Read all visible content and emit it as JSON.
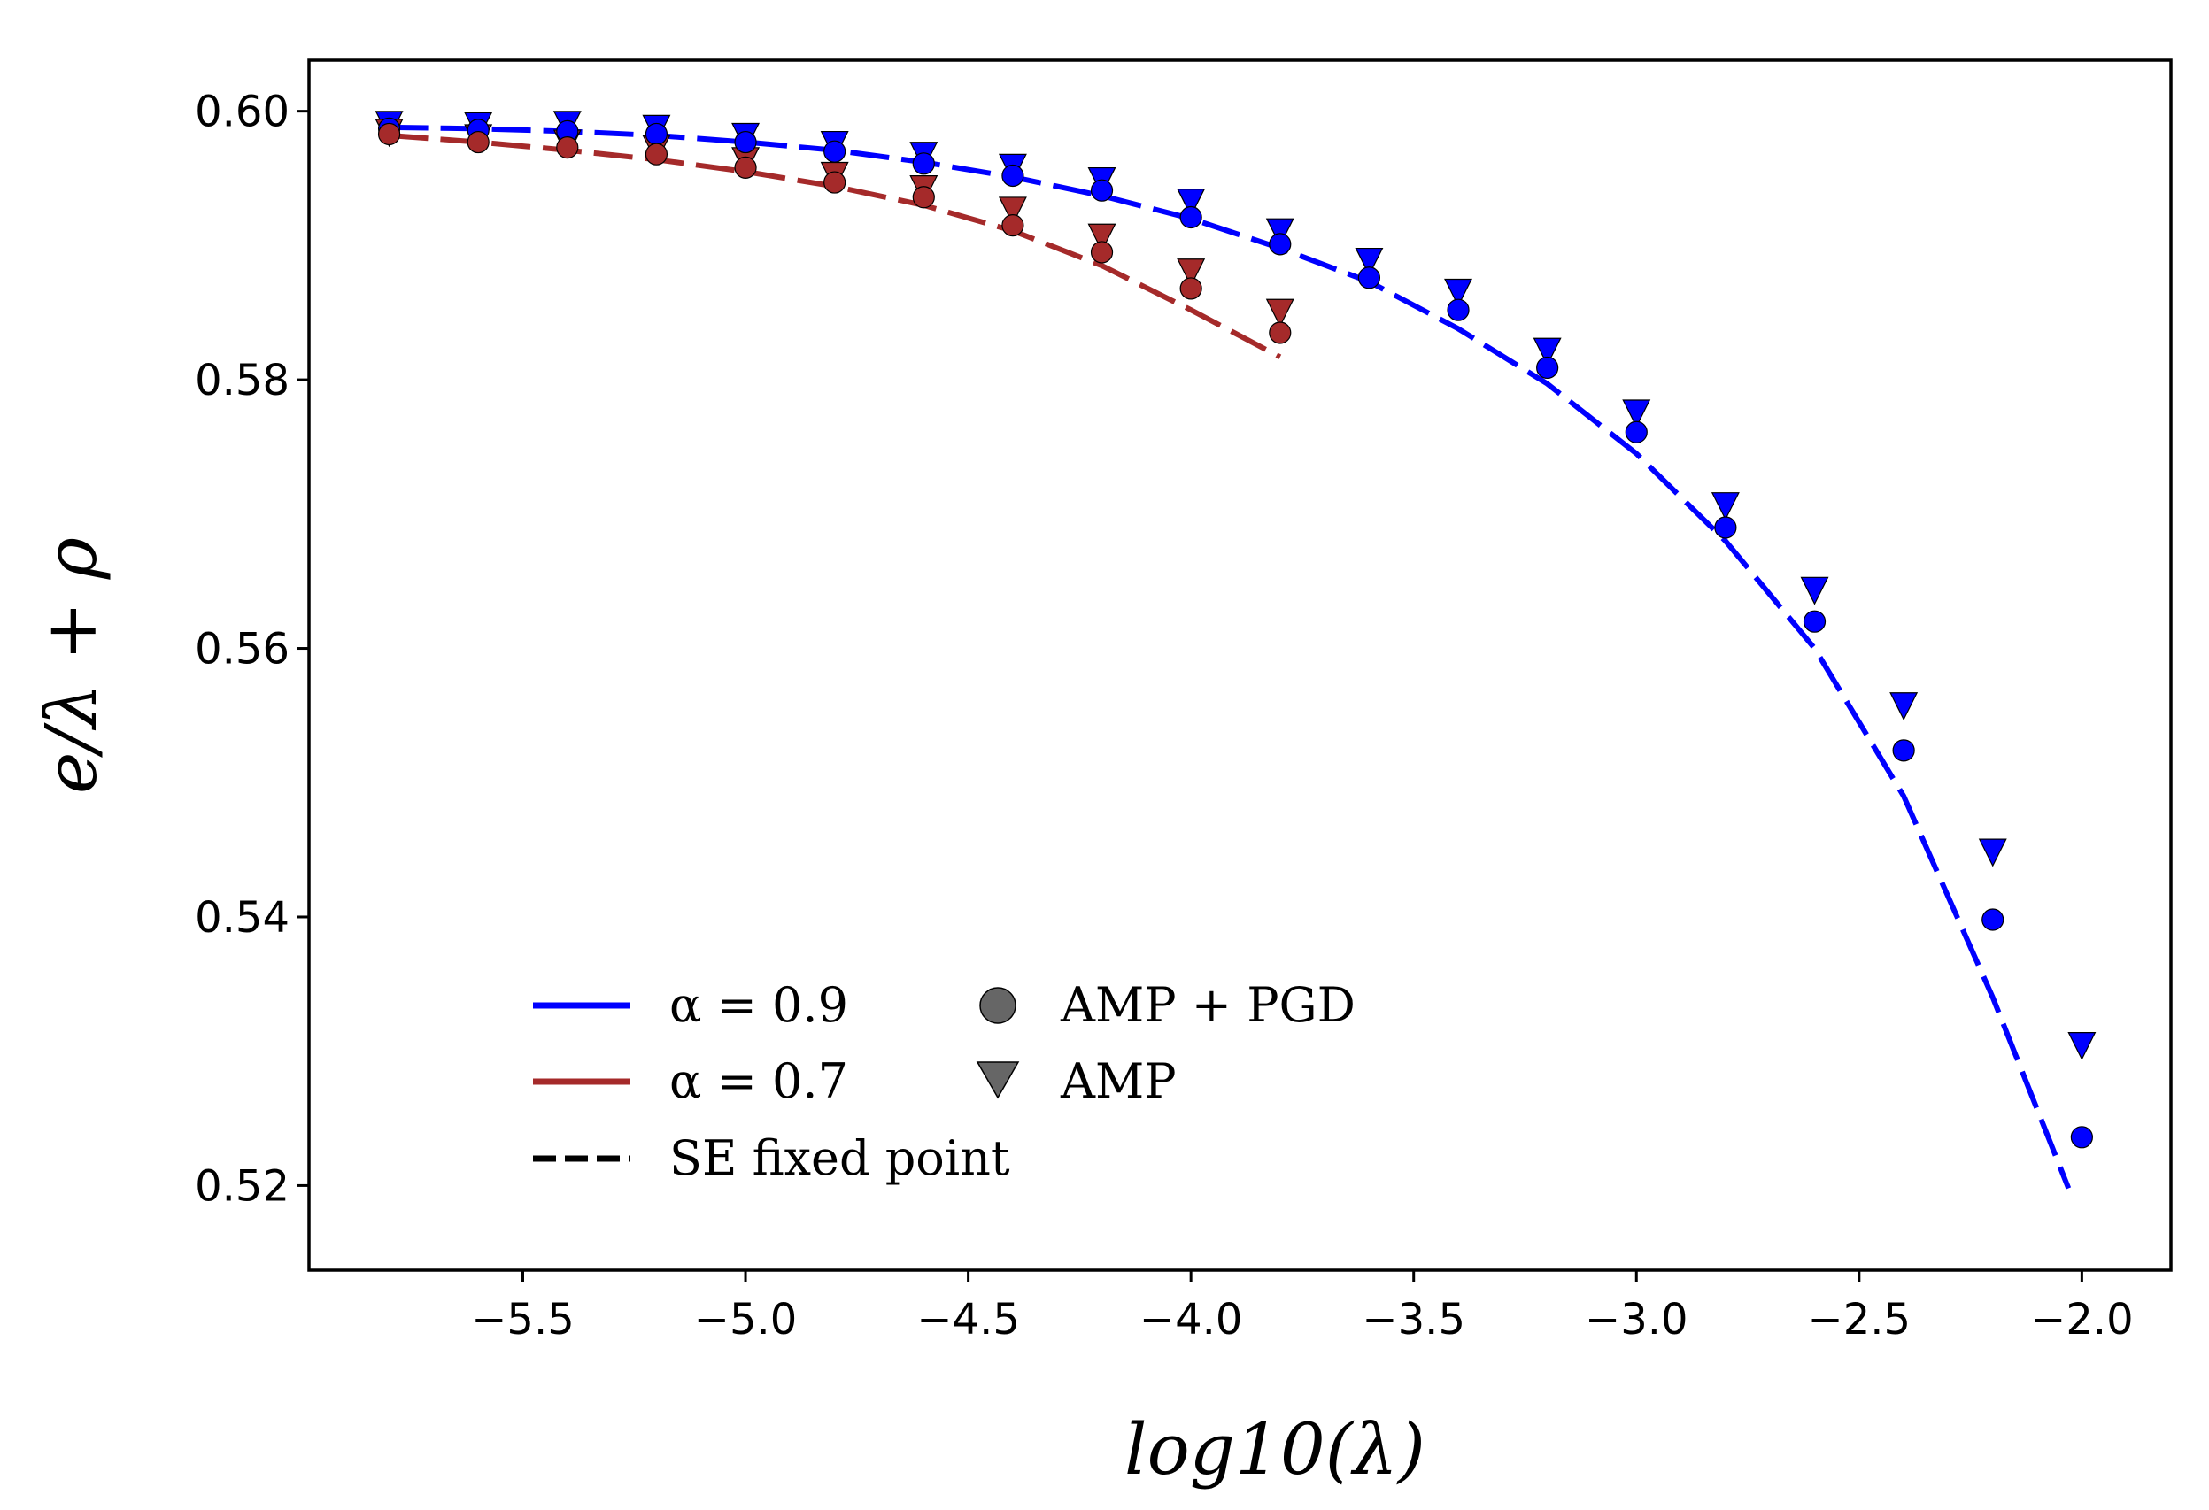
{
  "chart_data": {
    "type": "scatter",
    "title": "",
    "xlabel": "log10(λ)",
    "ylabel": "e/λ + ρ",
    "xlim": [
      -5.98,
      -1.8
    ],
    "ylim": [
      0.5137,
      0.6038
    ],
    "xticks": [
      -5.5,
      -5.0,
      -4.5,
      -4.0,
      -3.5,
      -3.0,
      -2.5,
      -2.0
    ],
    "xtick_labels": [
      "−5.5",
      "−5.0",
      "−4.5",
      "−4.0",
      "−3.5",
      "−3.0",
      "−2.5",
      "−2.0"
    ],
    "yticks": [
      0.52,
      0.54,
      0.56,
      0.58,
      0.6
    ],
    "ytick_labels": [
      "0.52",
      "0.54",
      "0.56",
      "0.58",
      "0.60"
    ],
    "grid": false,
    "legend_position": "lower-left",
    "legend": {
      "alpha_09": "α = 0.9",
      "alpha_07": "α = 0.7",
      "se_fixed_point": "SE fixed point",
      "amp_pgd": "AMP + PGD",
      "amp": "AMP"
    },
    "colors": {
      "alpha_09": "#0000ff",
      "alpha_07": "#a52a2a",
      "legend_marker": "#666666",
      "edge": "#000000"
    },
    "series": [
      {
        "name": "α = 0.9",
        "color_key": "alpha_09",
        "se_x": [
          -5.8,
          -5.6,
          -5.4,
          -5.2,
          -5.0,
          -4.8,
          -4.6,
          -4.4,
          -4.2,
          -4.0,
          -3.8,
          -3.6,
          -3.4,
          -3.2,
          -3.0,
          -2.8,
          -2.6,
          -2.4,
          -2.2,
          -2.03
        ],
        "se_y": [
          0.5988,
          0.5987,
          0.5985,
          0.5982,
          0.5977,
          0.5971,
          0.5962,
          0.5951,
          0.5937,
          0.592,
          0.5898,
          0.5873,
          0.5838,
          0.5797,
          0.5745,
          0.568,
          0.56,
          0.549,
          0.534,
          0.5198
        ],
        "amp_pgd": {
          "x": [
            -5.8,
            -5.6,
            -5.4,
            -5.2,
            -5.0,
            -4.8,
            -4.6,
            -4.4,
            -4.2,
            -4.0,
            -3.8,
            -3.6,
            -3.4,
            -3.2,
            -3.0,
            -2.8,
            -2.6,
            -2.4,
            -2.2,
            -2.0
          ],
          "y": [
            0.5987,
            0.5986,
            0.5985,
            0.5983,
            0.5977,
            0.597,
            0.5961,
            0.5952,
            0.5941,
            0.5921,
            0.5901,
            0.5876,
            0.5852,
            0.5809,
            0.5761,
            0.569,
            0.562,
            0.5524,
            0.5398,
            0.5236
          ]
        },
        "amp": {
          "x": [
            -5.8,
            -5.6,
            -5.4,
            -5.2,
            -5.0,
            -4.8,
            -4.6,
            -4.4,
            -4.2,
            -4.0,
            -3.8,
            -3.6,
            -3.4,
            -3.2,
            -3.0,
            -2.8,
            -2.6,
            -2.4,
            -2.2,
            -2.0
          ],
          "y": [
            0.599,
            0.5989,
            0.599,
            0.5987,
            0.5981,
            0.5975,
            0.5967,
            0.5958,
            0.5948,
            0.5932,
            0.591,
            0.5888,
            0.5865,
            0.5821,
            0.5775,
            0.5706,
            0.5643,
            0.5557,
            0.5448,
            0.5304
          ]
        }
      },
      {
        "name": "α = 0.7",
        "color_key": "alpha_07",
        "se_x": [
          -5.8,
          -5.6,
          -5.4,
          -5.2,
          -5.0,
          -4.8,
          -4.6,
          -4.4,
          -4.2,
          -4.0,
          -3.8
        ],
        "se_y": [
          0.5982,
          0.5977,
          0.5971,
          0.5964,
          0.5955,
          0.5944,
          0.593,
          0.5911,
          0.5885,
          0.5852,
          0.5817
        ],
        "amp_pgd": {
          "x": [
            -5.8,
            -5.6,
            -5.4,
            -5.2,
            -5.0,
            -4.8,
            -4.6,
            -4.4,
            -4.2,
            -4.0,
            -3.8
          ],
          "y": [
            0.5983,
            0.5977,
            0.5973,
            0.5968,
            0.5958,
            0.5947,
            0.5936,
            0.5915,
            0.5895,
            0.5868,
            0.5835
          ]
        },
        "amp": {
          "x": [
            -5.8,
            -5.6,
            -5.4,
            -5.2,
            -5.0,
            -4.8,
            -4.6,
            -4.4,
            -4.2,
            -4.0,
            -3.8
          ],
          "y": [
            0.5984,
            0.598,
            0.5976,
            0.5972,
            0.5963,
            0.5952,
            0.5942,
            0.5926,
            0.5906,
            0.588,
            0.585
          ]
        }
      }
    ]
  }
}
